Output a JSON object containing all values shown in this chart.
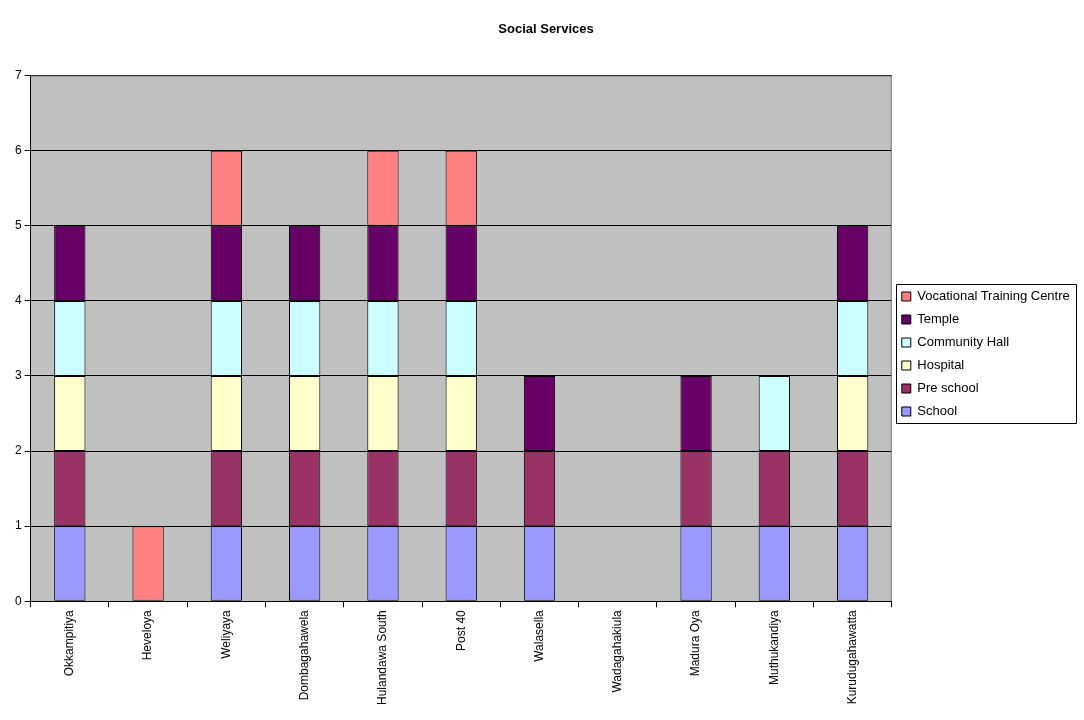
{
  "chart_data": {
    "type": "bar",
    "title": "Social Services",
    "stacked": true,
    "grid": "y",
    "legend": "right",
    "ylim": [
      0,
      7
    ],
    "yticks": [
      0,
      1,
      2,
      3,
      4,
      5,
      6,
      7
    ],
    "categories": [
      "Okkampitiya",
      "Heveloya",
      "Weliyaya",
      "Dombagahawela",
      "Hulandawa South",
      "Post 40",
      "Walasella",
      "Wadagahakiula",
      "Madura Oya",
      "Muthukandiya",
      "Kurudugahawatta"
    ],
    "series": [
      {
        "name": "School",
        "color": "#9999ff",
        "values": [
          1,
          0,
          1,
          1,
          1,
          1,
          1,
          0,
          1,
          1,
          1
        ]
      },
      {
        "name": "Pre school",
        "color": "#993366",
        "values": [
          1,
          0,
          1,
          1,
          1,
          1,
          1,
          0,
          1,
          1,
          1
        ]
      },
      {
        "name": "Hospital",
        "color": "#ffffcc",
        "values": [
          1,
          0,
          1,
          1,
          1,
          1,
          0,
          0,
          0,
          0,
          1
        ]
      },
      {
        "name": "Community Hall",
        "color": "#ccffff",
        "values": [
          1,
          0,
          1,
          1,
          1,
          1,
          0,
          0,
          0,
          1,
          1
        ]
      },
      {
        "name": "Temple",
        "color": "#660066",
        "values": [
          1,
          0,
          1,
          1,
          1,
          1,
          1,
          0,
          1,
          0,
          1
        ]
      },
      {
        "name": "Vocational Training Centre",
        "color": "#ff8080",
        "values": [
          0,
          1,
          1,
          0,
          1,
          1,
          0,
          0,
          0,
          0,
          0
        ]
      }
    ]
  }
}
